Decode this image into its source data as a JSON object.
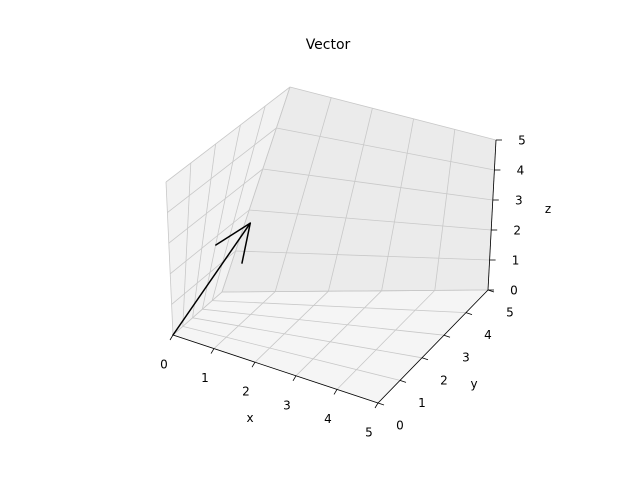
{
  "chart_data": {
    "type": "line",
    "projection": "3d",
    "title": "Vector",
    "xlabel": "x",
    "ylabel": "y",
    "zlabel": "z",
    "xlim": [
      0,
      5
    ],
    "ylim": [
      0,
      5
    ],
    "zlim": [
      0,
      5
    ],
    "xticks": [
      "0",
      "1",
      "2",
      "3",
      "4",
      "5"
    ],
    "yticks": [
      "0",
      "1",
      "2",
      "3",
      "4",
      "5"
    ],
    "zticks": [
      "0",
      "1",
      "2",
      "3",
      "4",
      "5"
    ],
    "grid": true,
    "vectors": [
      {
        "origin": [
          0,
          0,
          0
        ],
        "tip": [
          1,
          2,
          3
        ],
        "color": "#000000"
      }
    ],
    "pane_colors": {
      "x": "#f2f2f2",
      "y": "#ebebeb",
      "z": "#f5f5f5"
    },
    "grid_color": "#c8c8c8"
  }
}
